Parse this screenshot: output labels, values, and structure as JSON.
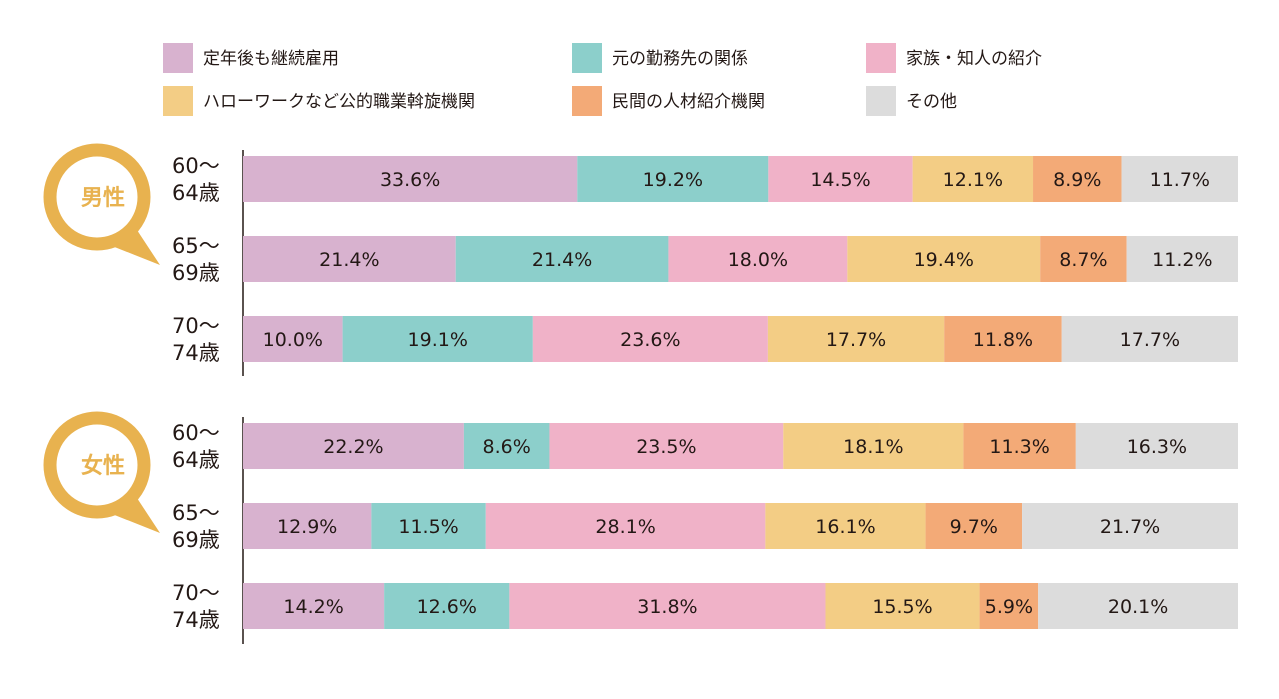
{
  "chart_data": {
    "type": "bar",
    "stacked": "100%",
    "orientation": "horizontal",
    "legend_position": "top",
    "colors": [
      "#d8b2cf",
      "#8ccfcb",
      "#f0b2c8",
      "#f3cd85",
      "#f3aa77",
      "#dcdcdc"
    ],
    "series_names": [
      "定年後も継続雇用",
      "元の勤務先の関係",
      "家族・知人の紹介",
      "ハローワークなど公的職業斡旋機関",
      "民間の人材紹介機関",
      "その他"
    ],
    "groups": [
      {
        "name": "男性",
        "rows": [
          {
            "line1": "60～",
            "line2": "64歳",
            "values": [
              33.6,
              19.2,
              14.5,
              12.1,
              8.9,
              11.7
            ]
          },
          {
            "line1": "65～",
            "line2": "69歳",
            "values": [
              21.4,
              21.4,
              18.0,
              19.4,
              8.7,
              11.2
            ]
          },
          {
            "line1": "70～",
            "line2": "74歳",
            "values": [
              10.0,
              19.1,
              23.6,
              17.7,
              11.8,
              17.7
            ]
          }
        ]
      },
      {
        "name": "女性",
        "rows": [
          {
            "line1": "60～",
            "line2": "64歳",
            "values": [
              22.2,
              8.6,
              23.5,
              18.1,
              11.3,
              16.3
            ]
          },
          {
            "line1": "65～",
            "line2": "69歳",
            "values": [
              12.9,
              11.5,
              28.1,
              16.1,
              9.7,
              21.7
            ]
          },
          {
            "line1": "70～",
            "line2": "74歳",
            "values": [
              14.2,
              12.6,
              31.8,
              15.5,
              5.9,
              20.1
            ]
          }
        ]
      }
    ]
  }
}
